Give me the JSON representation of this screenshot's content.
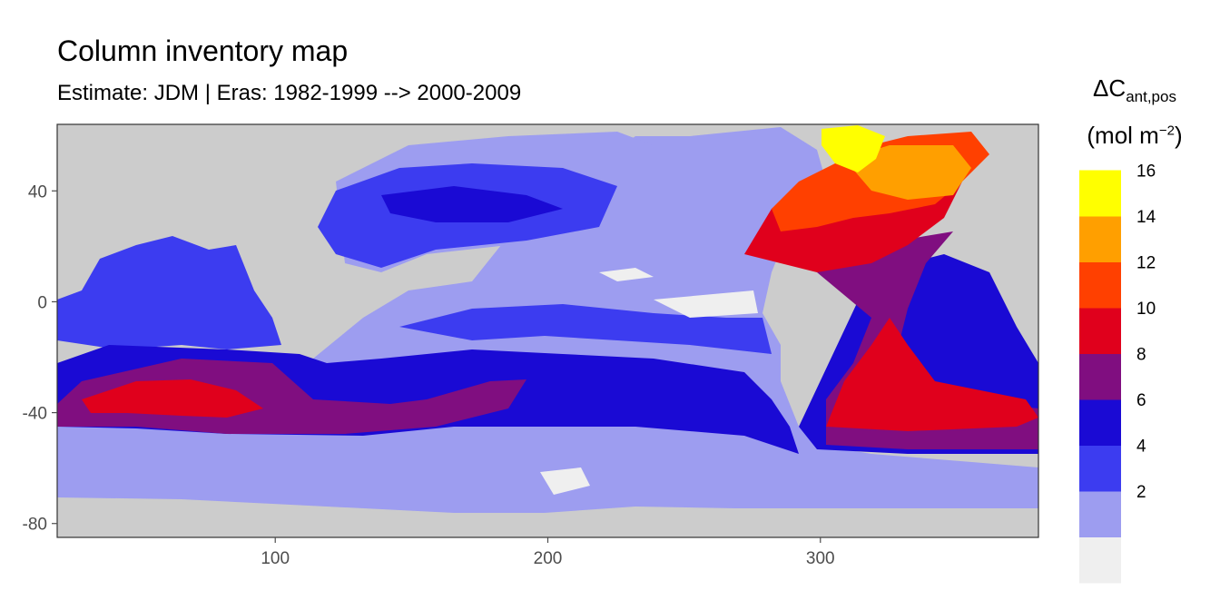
{
  "title": "Column inventory map",
  "subtitle": "Estimate: JDM  | Eras: 1982-1999 --> 2000-2009",
  "legend": {
    "symbol": "ΔC",
    "subscript": "ant,pos",
    "unit_base": "(mol m",
    "unit_exp": "−2",
    "unit_close": ")",
    "bins": [
      {
        "upper": "",
        "color": "#efefef"
      },
      {
        "upper": "2",
        "color": "#9d9df0"
      },
      {
        "upper": "4",
        "color": "#3c3cf0"
      },
      {
        "upper": "6",
        "color": "#1a0ad4"
      },
      {
        "upper": "8",
        "color": "#800e80"
      },
      {
        "upper": "10",
        "color": "#e0001c"
      },
      {
        "upper": "12",
        "color": "#ff4000"
      },
      {
        "upper": "14",
        "color": "#ff9f00"
      },
      {
        "upper": "16",
        "color": "#ffff00"
      }
    ]
  },
  "colors": {
    "land": "#cccccc",
    "panel_border": "#333333",
    "tick_color": "#4d4d4d"
  },
  "chart_data": {
    "type": "heatmap",
    "title": "Column inventory map",
    "subtitle": "Estimate: JDM  | Eras: 1982-1999 --> 2000-2009",
    "xlabel": "",
    "ylabel": "",
    "xlim": [
      20,
      380
    ],
    "ylim": [
      -85,
      64
    ],
    "x_ticks": [
      "100",
      "200",
      "300"
    ],
    "x_tick_values": [
      100,
      200,
      300
    ],
    "y_ticks": [
      "40",
      "0",
      "-40",
      "-80"
    ],
    "y_tick_values": [
      40,
      0,
      -40,
      -80
    ],
    "legend_position": "right",
    "grid": false
  }
}
